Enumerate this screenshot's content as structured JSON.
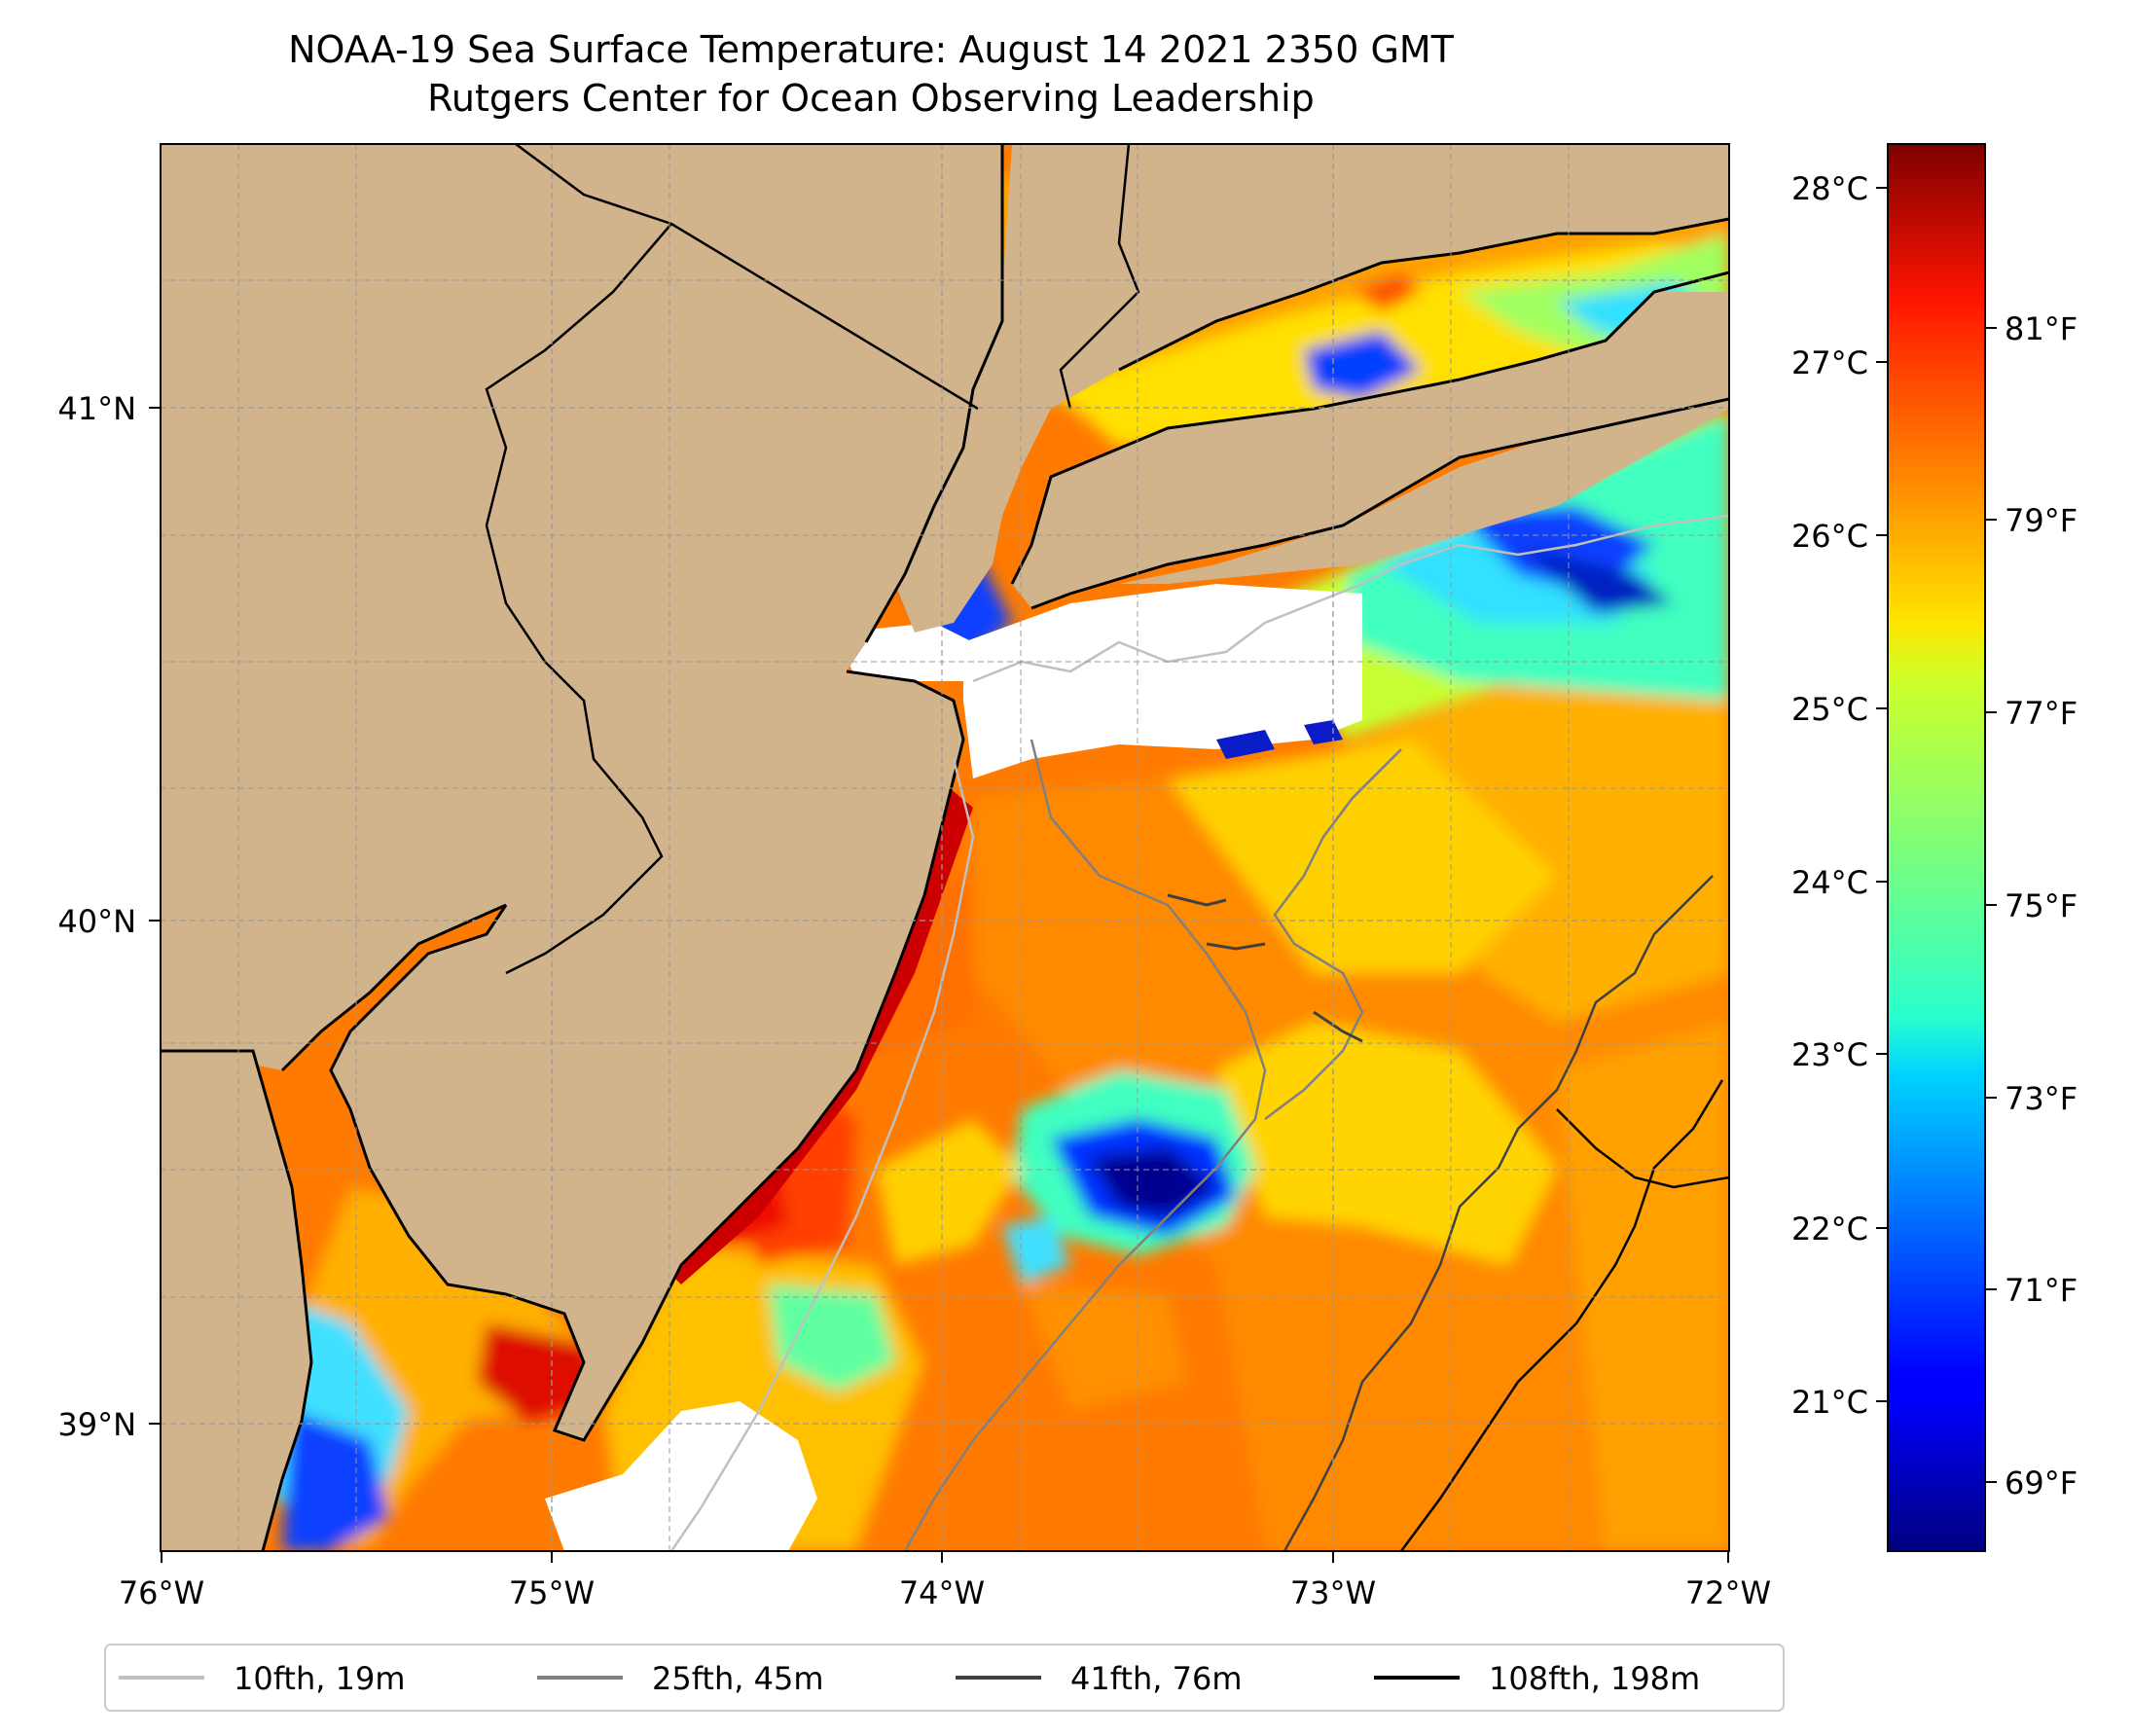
{
  "title": "NOAA-19 Sea Surface Temperature: August 14 2021 2350 GMT",
  "subtitle": "Rutgers Center for Ocean Observing Leadership",
  "colors": {
    "land": "#d2b48c",
    "no_data": "#ffffff",
    "coastline": "#000000",
    "gridline": "#999999"
  },
  "map": {
    "lon_range": [
      -76,
      -72
    ],
    "lat_range": [
      38.75,
      41.5
    ],
    "grid": true,
    "x_ticks": [
      "76°W",
      "75°W",
      "74°W",
      "73°W",
      "72°W"
    ],
    "y_ticks": [
      "39°N",
      "40°N",
      "41°N"
    ]
  },
  "colorbar": {
    "colormap": "jet",
    "celsius_ticks": [
      "21°C",
      "22°C",
      "23°C",
      "24°C",
      "25°C",
      "26°C",
      "27°C",
      "28°C"
    ],
    "fahrenheit_ticks": [
      "69°F",
      "71°F",
      "73°F",
      "75°F",
      "77°F",
      "79°F",
      "81°F"
    ],
    "range_c": [
      20.0,
      28.3
    ]
  },
  "legend": {
    "placement": "bottom-center",
    "entries": [
      {
        "label": "10fth, 19m",
        "color": "#c0c0c0"
      },
      {
        "label": "25fth, 45m",
        "color": "#808080"
      },
      {
        "label": "41fth, 76m",
        "color": "#404040"
      },
      {
        "label": "108fth, 198m",
        "color": "#000000"
      }
    ]
  }
}
